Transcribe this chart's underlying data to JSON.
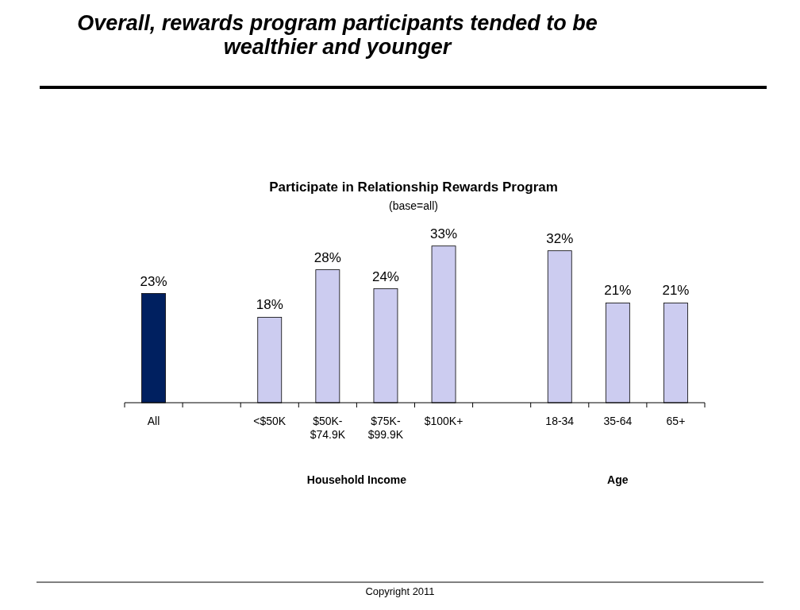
{
  "chart_data": {
    "type": "bar",
    "title": "Overall, rewards program participants tended to be wealthier and younger",
    "subtitle": "Participate in Relationship Rewards Program",
    "annotations": [
      "(base=all)",
      "Household Income",
      "Age",
      "Copyright 2011"
    ],
    "categories": [
      "All",
      null,
      "<$50K",
      "$50K-$74.9K",
      "$75K-$99.9K",
      "$100K+",
      null,
      "18-34",
      "35-64",
      "65+"
    ],
    "values": [
      23,
      null,
      18,
      28,
      24,
      33,
      null,
      32,
      21,
      21
    ],
    "colors": [
      "#002060",
      null,
      "#ccccf0",
      "#ccccf0",
      "#ccccf0",
      "#ccccf0",
      null,
      "#ccccf0",
      "#ccccf0",
      "#ccccf0"
    ],
    "value_labels": [
      "23%",
      null,
      "18%",
      "28%",
      "24%",
      "33%",
      null,
      "32%",
      "21%",
      "21%"
    ]
  }
}
